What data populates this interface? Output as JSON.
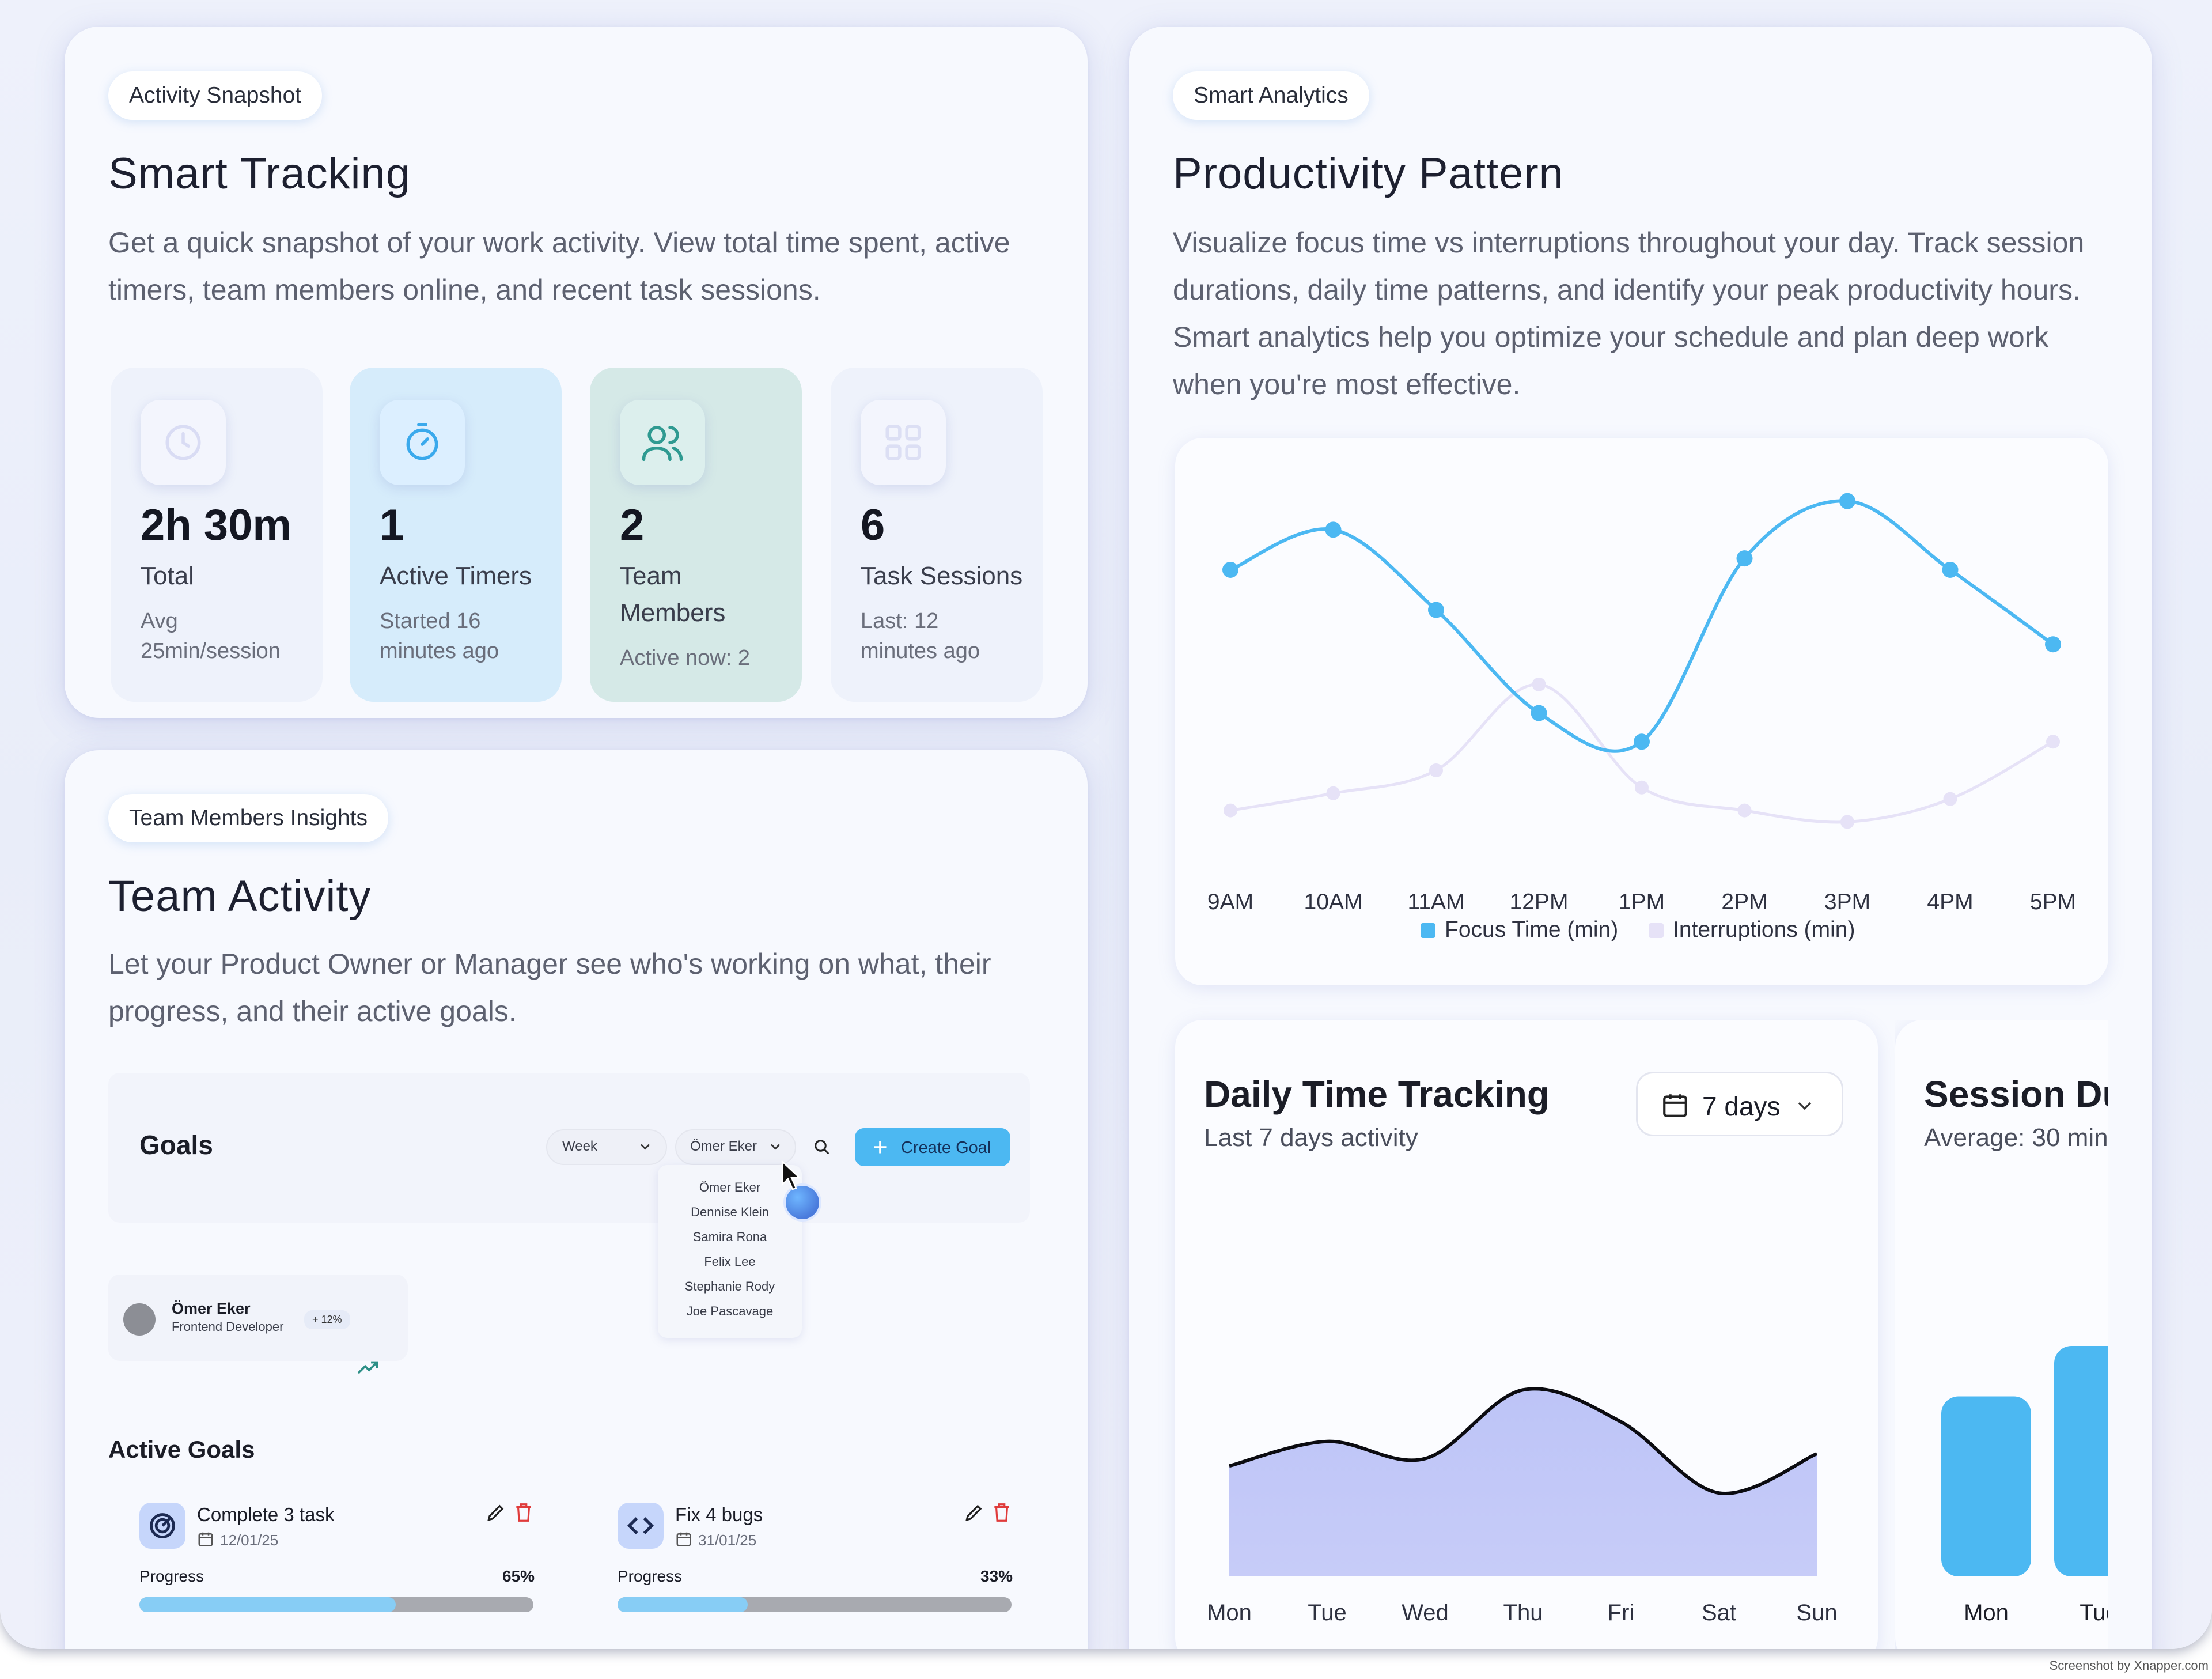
{
  "snapshot": {
    "badge": "Activity Snapshot",
    "title": "Smart Tracking",
    "description": "Get a quick snapshot of your work activity. View total time spent, active timers, team members online, and recent task sessions.",
    "stats": [
      {
        "value": "2h 30m",
        "label": "Total",
        "sub": "Avg 25min/session",
        "icon": "clock-icon"
      },
      {
        "value": "1",
        "label": "Active Timers",
        "sub": "Started 16 minutes ago",
        "icon": "timer-icon"
      },
      {
        "value": "2",
        "label": "Team Members",
        "sub": "Active now: 2",
        "icon": "users-icon"
      },
      {
        "value": "6",
        "label": "Task Sessions",
        "sub": "Last: 12 minutes ago",
        "icon": "grid-icon"
      }
    ]
  },
  "team": {
    "badge": "Team Members Insights",
    "title": "Team Activity",
    "description": "Let your Product Owner or Manager see who's working on what, their progress, and their active goals.",
    "goals_panel": {
      "title": "Goals",
      "period_select": "Week",
      "member_select": "Ömer Eker",
      "create_button": "Create Goal",
      "dropdown_options": [
        "Ömer Eker",
        "Dennise Klein",
        "Samira Rona",
        "Felix Lee",
        "Stephanie Rody",
        "Joe Pascavage"
      ],
      "member": {
        "name": "Ömer Eker",
        "role": "Frontend Developer",
        "change": "+ 12%"
      }
    },
    "active_goals_title": "Active Goals",
    "active_goals": [
      {
        "title": "Complete 3 task",
        "date": "12/01/25",
        "progress_label": "Progress",
        "progress_text": "65%",
        "progress": 0.65,
        "icon": "target-icon"
      },
      {
        "title": "Fix 4 bugs",
        "date": "31/01/25",
        "progress_label": "Progress",
        "progress_text": "33%",
        "progress": 0.33,
        "icon": "code-icon"
      }
    ]
  },
  "analytics": {
    "badge": "Smart Analytics",
    "title": "Productivity Pattern",
    "description": "Visualize focus time vs interruptions throughout your day. Track session durations, daily time patterns, and identify your peak productivity hours. Smart analytics help you optimize your schedule and plan deep work when you're most effective."
  },
  "daily": {
    "title": "Daily Time Tracking",
    "subtitle": "Last 7 days activity",
    "range_select": "7 days"
  },
  "session": {
    "title": "Session Du",
    "subtitle": "Average: 30 min"
  },
  "watermark": "Screenshot by Xnapper.com",
  "colors": {
    "focus": "#4cb8f2",
    "interruptions": "#e6e2f7",
    "area": "#bdc4f7",
    "primary": "#4cb8f2"
  },
  "chart_data": [
    {
      "type": "line",
      "categories": [
        "9AM",
        "10AM",
        "11AM",
        "12PM",
        "1PM",
        "2PM",
        "3PM",
        "4PM",
        "5PM"
      ],
      "series": [
        {
          "name": "Focus Time (min)",
          "values": [
            82,
            89,
            75,
            57,
            52,
            84,
            94,
            82,
            69
          ]
        },
        {
          "name": "Interruptions (min)",
          "values": [
            40,
            43,
            47,
            62,
            44,
            40,
            38,
            42,
            52
          ]
        }
      ],
      "ylim": [
        30,
        100
      ],
      "legend": "bottom",
      "grid": false
    },
    {
      "type": "area",
      "categories": [
        "Mon",
        "Tue",
        "Wed",
        "Thu",
        "Fri",
        "Sat",
        "Sun"
      ],
      "values": [
        45,
        55,
        48,
        76,
        63,
        34,
        50
      ],
      "ylim": [
        0,
        100
      ],
      "grid": false
    },
    {
      "type": "bar",
      "categories": [
        "Mon",
        "Tue"
      ],
      "values": [
        25,
        32
      ],
      "ylim": [
        0,
        40
      ],
      "grid": false
    }
  ]
}
